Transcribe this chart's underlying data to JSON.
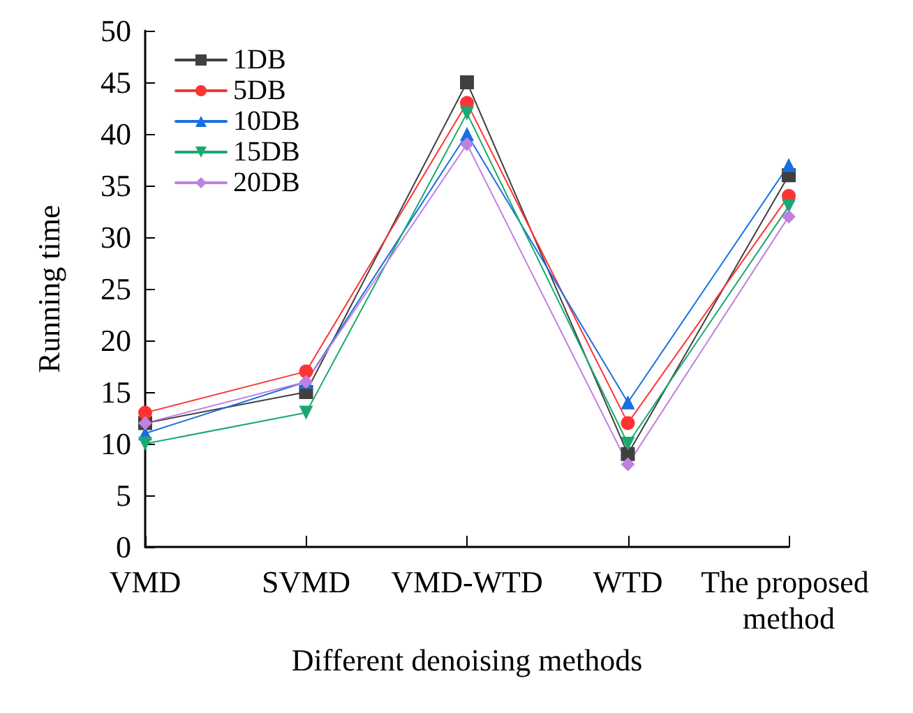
{
  "chart_data": {
    "type": "line",
    "xlabel": "Different denoising methods",
    "ylabel": "Running time",
    "categories": [
      "VMD",
      "SVMD",
      "VMD-WTD",
      "WTD",
      "The proposed method"
    ],
    "series": [
      {
        "name": "1DB",
        "color": "#404040",
        "marker": "square",
        "values": [
          12,
          15,
          45,
          9,
          36
        ]
      },
      {
        "name": "5DB",
        "color": "#ff3333",
        "marker": "circle",
        "values": [
          13,
          17,
          43,
          12,
          34
        ]
      },
      {
        "name": "10DB",
        "color": "#1a6fe0",
        "marker": "triangle",
        "values": [
          11,
          16,
          40,
          14,
          37
        ]
      },
      {
        "name": "15DB",
        "color": "#1aa870",
        "marker": "triangle-down",
        "values": [
          10,
          13,
          42,
          10,
          33
        ]
      },
      {
        "name": "20DB",
        "color": "#c080e0",
        "marker": "diamond",
        "values": [
          12,
          16,
          39,
          8,
          32
        ]
      }
    ],
    "ylim": [
      0,
      50
    ],
    "yticks": [
      0,
      5,
      10,
      15,
      20,
      25,
      30,
      35,
      40,
      45,
      50
    ],
    "grid": false,
    "legend": "top left",
    "line_style": "solid"
  }
}
